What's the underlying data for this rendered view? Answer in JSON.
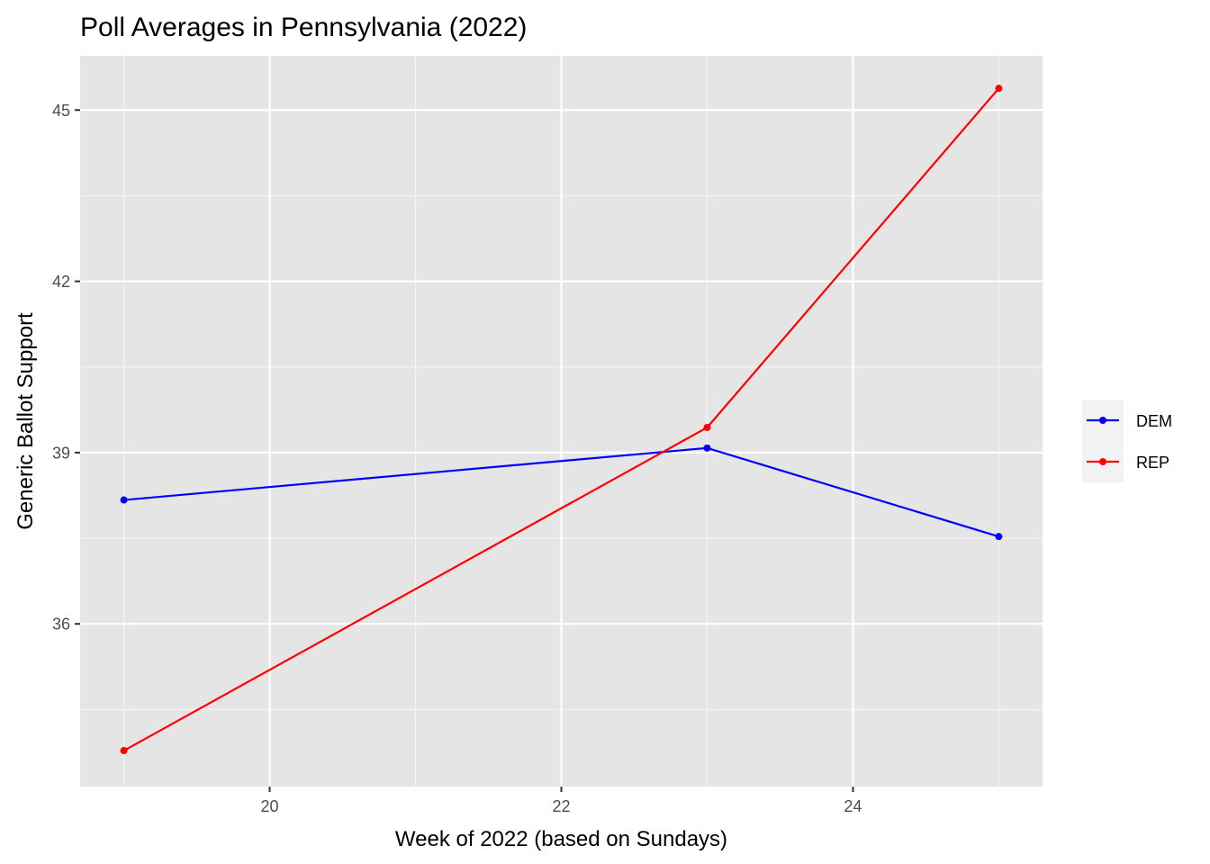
{
  "chart_data": {
    "type": "line",
    "title": "Poll Averages in Pennsylvania (2022)",
    "xlabel": "Week of 2022 (based on Sundays)",
    "ylabel": "Generic Ballot Support",
    "x": [
      19,
      23,
      25
    ],
    "xlim": [
      18.7,
      25.3
    ],
    "ylim": [
      33.15,
      45.95
    ],
    "x_ticks": [
      20,
      22,
      24
    ],
    "x_tick_labels": [
      "20",
      "22",
      "24"
    ],
    "y_ticks": [
      36,
      39,
      42,
      45
    ],
    "y_tick_labels": [
      "36",
      "39",
      "42",
      "45"
    ],
    "grid": true,
    "legend": "right",
    "series": [
      {
        "name": "DEM",
        "color": "#0000ff",
        "values": [
          38.17,
          39.08,
          37.53
        ]
      },
      {
        "name": "REP",
        "color": "#ff0000",
        "values": [
          33.78,
          39.44,
          45.38
        ]
      }
    ]
  }
}
